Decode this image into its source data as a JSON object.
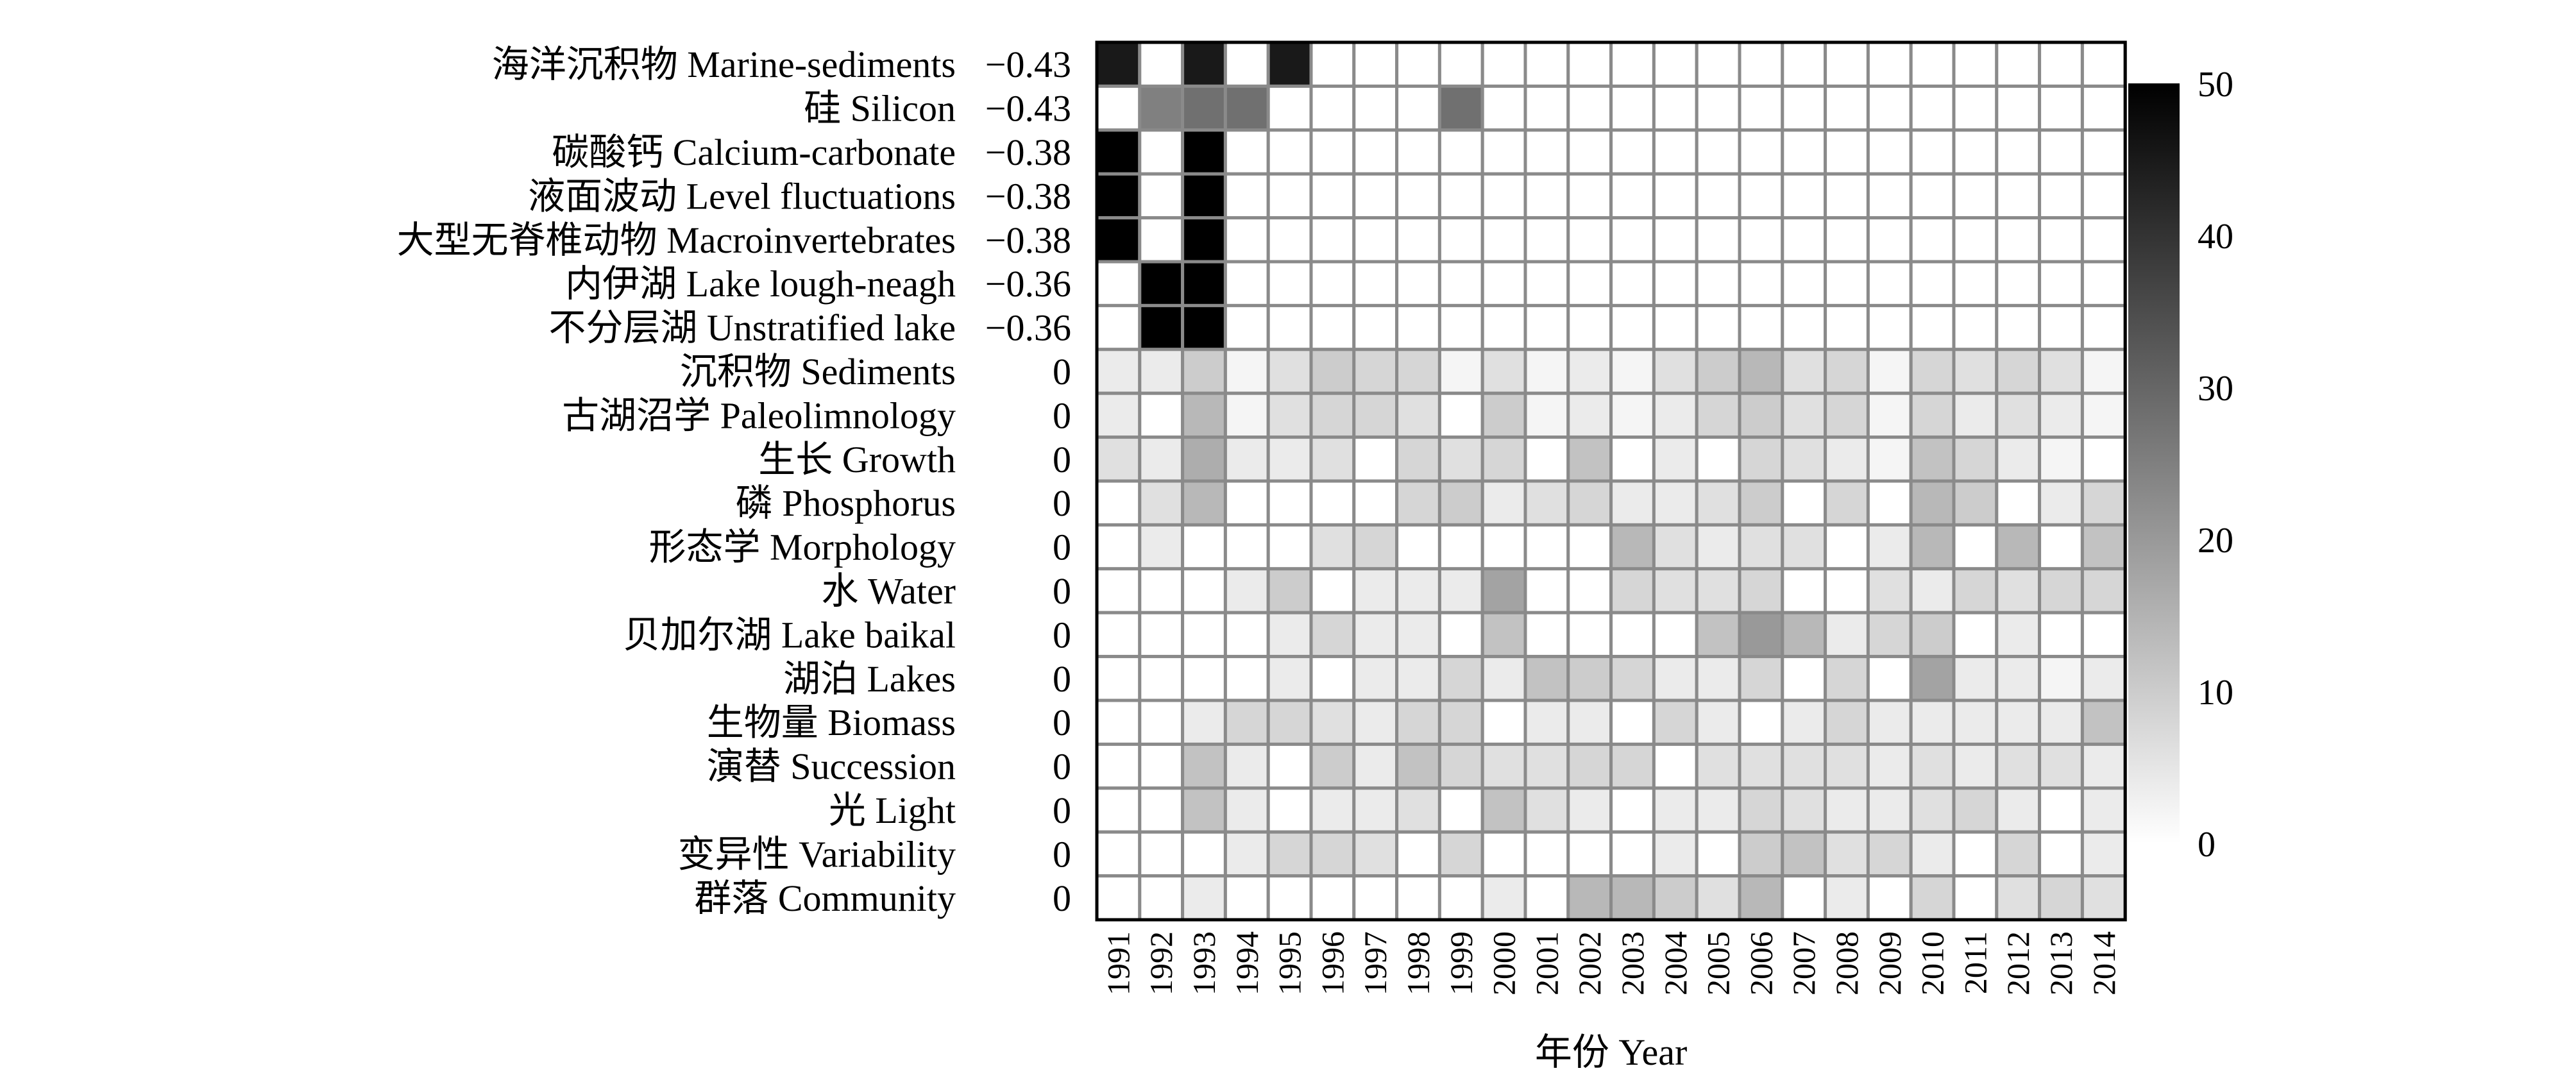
{
  "chart_data": {
    "type": "heatmap",
    "xlabel": "年份 Year",
    "years": [
      "1991",
      "1992",
      "1993",
      "1994",
      "1995",
      "1996",
      "1997",
      "1998",
      "1999",
      "2000",
      "2001",
      "2002",
      "2003",
      "2004",
      "2005",
      "2006",
      "2007",
      "2008",
      "2009",
      "2010",
      "2011",
      "2012",
      "2013",
      "2014"
    ],
    "rows": [
      {
        "label": "海洋沉积物 Marine-sediments",
        "score": "−0.43",
        "values": [
          45,
          0,
          45,
          0,
          45,
          0,
          0,
          0,
          0,
          0,
          0,
          0,
          0,
          0,
          0,
          0,
          0,
          0,
          0,
          0,
          0,
          0,
          0,
          0
        ]
      },
      {
        "label": "硅 Silicon",
        "score": "−0.43",
        "values": [
          0,
          25,
          28,
          28,
          0,
          0,
          0,
          0,
          28,
          0,
          0,
          0,
          0,
          0,
          0,
          0,
          0,
          0,
          0,
          0,
          0,
          0,
          0,
          0
        ]
      },
      {
        "label": "碳酸钙 Calcium-carbonate",
        "score": "−0.38",
        "values": [
          50,
          0,
          50,
          0,
          0,
          0,
          0,
          0,
          0,
          0,
          0,
          0,
          0,
          0,
          0,
          0,
          0,
          0,
          0,
          0,
          0,
          0,
          0,
          0
        ]
      },
      {
        "label": "液面波动 Level fluctuations",
        "score": "−0.38",
        "values": [
          50,
          0,
          50,
          0,
          0,
          0,
          0,
          0,
          0,
          0,
          0,
          0,
          0,
          0,
          0,
          0,
          0,
          0,
          0,
          0,
          0,
          0,
          0,
          0
        ]
      },
      {
        "label": "大型无脊椎动物 Macroinvertebrates",
        "score": "−0.38",
        "values": [
          50,
          0,
          50,
          0,
          0,
          0,
          0,
          0,
          0,
          0,
          0,
          0,
          0,
          0,
          0,
          0,
          0,
          0,
          0,
          0,
          0,
          0,
          0,
          0
        ]
      },
      {
        "label": "内伊湖 Lake lough-neagh",
        "score": "−0.36",
        "values": [
          0,
          50,
          50,
          0,
          0,
          0,
          0,
          0,
          0,
          0,
          0,
          0,
          0,
          0,
          0,
          0,
          0,
          0,
          0,
          0,
          0,
          0,
          0,
          0
        ]
      },
      {
        "label": "不分层湖 Unstratified lake",
        "score": "−0.36",
        "values": [
          0,
          50,
          50,
          0,
          0,
          0,
          0,
          0,
          0,
          0,
          0,
          0,
          0,
          0,
          0,
          0,
          0,
          0,
          0,
          0,
          0,
          0,
          0,
          0
        ]
      },
      {
        "label": "沉积物 Sediments",
        "score": "0",
        "values": [
          4,
          4,
          10,
          2,
          6,
          10,
          8,
          8,
          2,
          6,
          2,
          4,
          2,
          6,
          10,
          14,
          6,
          8,
          2,
          8,
          6,
          8,
          6,
          2
        ]
      },
      {
        "label": "古湖沼学 Paleolimnology",
        "score": "0",
        "values": [
          4,
          0,
          14,
          2,
          6,
          8,
          8,
          6,
          0,
          10,
          2,
          4,
          2,
          4,
          8,
          10,
          6,
          8,
          2,
          8,
          4,
          6,
          4,
          2
        ]
      },
      {
        "label": "生长 Growth",
        "score": "0",
        "values": [
          6,
          4,
          16,
          4,
          4,
          6,
          0,
          8,
          6,
          8,
          0,
          12,
          0,
          4,
          0,
          8,
          6,
          4,
          2,
          12,
          8,
          4,
          2,
          0
        ]
      },
      {
        "label": "磷 Phosphorus",
        "score": "0",
        "values": [
          0,
          6,
          14,
          0,
          0,
          0,
          0,
          8,
          10,
          4,
          6,
          8,
          4,
          4,
          6,
          10,
          0,
          8,
          0,
          14,
          10,
          0,
          4,
          8
        ]
      },
      {
        "label": "形态学 Morphology",
        "score": "0",
        "values": [
          0,
          4,
          0,
          0,
          0,
          6,
          8,
          0,
          0,
          0,
          0,
          0,
          14,
          6,
          4,
          6,
          6,
          0,
          4,
          14,
          0,
          14,
          0,
          12
        ]
      },
      {
        "label": "水 Water",
        "score": "0",
        "values": [
          0,
          0,
          0,
          4,
          10,
          0,
          4,
          4,
          4,
          18,
          0,
          0,
          8,
          6,
          6,
          8,
          0,
          0,
          6,
          4,
          8,
          6,
          8,
          8
        ]
      },
      {
        "label": "贝加尔湖 Lake baikal",
        "score": "0",
        "values": [
          0,
          0,
          0,
          0,
          4,
          8,
          4,
          4,
          0,
          12,
          0,
          0,
          0,
          0,
          12,
          20,
          14,
          4,
          8,
          10,
          0,
          4,
          0,
          0
        ]
      },
      {
        "label": "湖泊 Lakes",
        "score": "0",
        "values": [
          0,
          0,
          0,
          0,
          4,
          0,
          4,
          4,
          8,
          4,
          12,
          10,
          8,
          4,
          4,
          8,
          0,
          8,
          0,
          18,
          4,
          4,
          2,
          4
        ]
      },
      {
        "label": "生物量 Biomass",
        "score": "0",
        "values": [
          0,
          0,
          4,
          8,
          8,
          6,
          4,
          8,
          8,
          0,
          4,
          4,
          0,
          8,
          4,
          0,
          4,
          8,
          4,
          4,
          4,
          4,
          4,
          12
        ]
      },
      {
        "label": "演替 Succession",
        "score": "0",
        "values": [
          0,
          0,
          12,
          4,
          0,
          10,
          4,
          12,
          8,
          6,
          6,
          8,
          8,
          0,
          6,
          6,
          6,
          6,
          4,
          6,
          4,
          6,
          6,
          4
        ]
      },
      {
        "label": "光 Light",
        "score": "0",
        "values": [
          0,
          0,
          12,
          4,
          0,
          4,
          4,
          6,
          0,
          12,
          6,
          4,
          0,
          4,
          4,
          8,
          6,
          4,
          4,
          6,
          8,
          4,
          0,
          4
        ]
      },
      {
        "label": "变异性 Variability",
        "score": "0",
        "values": [
          0,
          0,
          0,
          4,
          8,
          8,
          6,
          0,
          8,
          0,
          0,
          0,
          0,
          4,
          0,
          10,
          12,
          6,
          8,
          4,
          0,
          8,
          0,
          4
        ]
      },
      {
        "label": "群落 Community",
        "score": "0",
        "values": [
          0,
          0,
          4,
          0,
          0,
          0,
          0,
          0,
          0,
          4,
          0,
          14,
          14,
          10,
          6,
          14,
          0,
          4,
          0,
          8,
          0,
          6,
          8,
          6
        ]
      }
    ],
    "colorbar": {
      "min": 0,
      "max": 50,
      "ticks": [
        "0",
        "10",
        "20",
        "30",
        "40",
        "50"
      ]
    },
    "colors": {
      "low": "#ffffff",
      "high": "#000000",
      "grid": "#8a8a8a"
    }
  }
}
